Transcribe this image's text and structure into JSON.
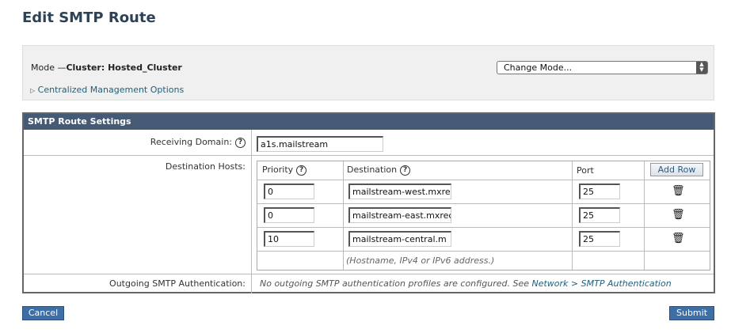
{
  "title": "Edit SMTP Route",
  "mode": {
    "prefix": "Mode —",
    "value": "Cluster: Hosted_Cluster",
    "change_mode": "Change Mode...",
    "centralized": "Centralized Management Options"
  },
  "settings": {
    "header": "SMTP Route Settings",
    "receiving_domain_label": "Receiving Domain:",
    "receiving_domain_value": "a1s.mailstream",
    "destination_hosts_label": "Destination Hosts:",
    "columns": {
      "priority": "Priority",
      "destination": "Destination",
      "port": "Port"
    },
    "add_row": "Add Row",
    "rows": [
      {
        "priority": "0",
        "destination": "mailstream-west.mxre",
        "port": "25"
      },
      {
        "priority": "0",
        "destination": "mailstream-east.mxrec",
        "port": "25"
      },
      {
        "priority": "10",
        "destination": "mailstream-central.m",
        "port": "25"
      }
    ],
    "hint": "(Hostname, IPv4 or IPv6 address.)",
    "outgoing_label": "Outgoing SMTP Authentication:",
    "outgoing_text": "No outgoing SMTP authentication profiles are configured. See ",
    "outgoing_link": "Network > SMTP Authentication"
  },
  "buttons": {
    "cancel": "Cancel",
    "submit": "Submit"
  }
}
